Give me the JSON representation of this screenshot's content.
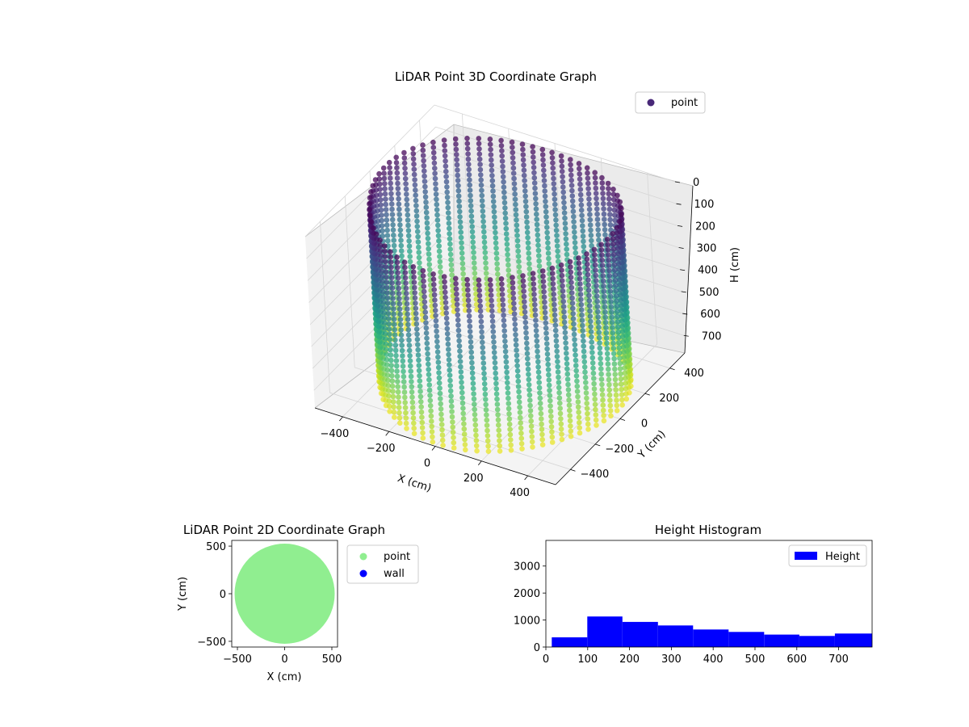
{
  "chart_data": [
    {
      "type": "scatter3d",
      "title": "LiDAR Point 3D Coordinate Graph",
      "xlabel": "X (cm)",
      "ylabel": "Y (cm)",
      "zlabel": "H (cm)",
      "xticks": [
        -400,
        -200,
        0,
        200,
        400
      ],
      "yticks": [
        -400,
        -200,
        0,
        200,
        400
      ],
      "zticks": [
        0,
        100,
        200,
        300,
        400,
        500,
        600,
        700
      ],
      "xlim": [
        -520,
        520
      ],
      "ylim": [
        -520,
        520
      ],
      "zlim": [
        0,
        780
      ],
      "z_inverted": true,
      "colormap": "viridis",
      "legend": {
        "label": "point",
        "placement": "top-right",
        "color": "#482878"
      },
      "shape": {
        "type": "cylinder",
        "radius": 500,
        "height": 780
      },
      "grid": true
    },
    {
      "type": "scatter",
      "title": "LiDAR Point 2D Coordinate Graph",
      "xlabel": "X (cm)",
      "ylabel": "Y (cm)",
      "xticks": [
        -500,
        0,
        500
      ],
      "yticks": [
        -500,
        0,
        500
      ],
      "xlim": [
        -560,
        560
      ],
      "ylim": [
        -560,
        560
      ],
      "series": [
        {
          "name": "point",
          "color": "#90ee90",
          "shape": "disk",
          "radius": 530
        },
        {
          "name": "wall",
          "color": "#0000ff"
        }
      ],
      "legend": {
        "placement": "outside-right"
      }
    },
    {
      "type": "bar",
      "title": "Height Histogram",
      "xticks": [
        0,
        100,
        200,
        300,
        400,
        500,
        600,
        700
      ],
      "yticks": [
        0,
        1000,
        2000,
        3000
      ],
      "xlim": [
        0,
        780
      ],
      "ylim": [
        0,
        3950
      ],
      "bins": [
        {
          "start": 14,
          "end": 99,
          "value": 360
        },
        {
          "start": 99,
          "end": 183,
          "value": 1130
        },
        {
          "start": 183,
          "end": 268,
          "value": 930
        },
        {
          "start": 268,
          "end": 352,
          "value": 800
        },
        {
          "start": 352,
          "end": 437,
          "value": 650
        },
        {
          "start": 437,
          "end": 522,
          "value": 560
        },
        {
          "start": 522,
          "end": 606,
          "value": 460
        },
        {
          "start": 606,
          "end": 691,
          "value": 410
        },
        {
          "start": 691,
          "end": 780,
          "value": 500
        }
      ],
      "series": [
        {
          "name": "Height",
          "color": "#0000ff"
        }
      ],
      "legend": {
        "placement": "top-right"
      }
    }
  ]
}
